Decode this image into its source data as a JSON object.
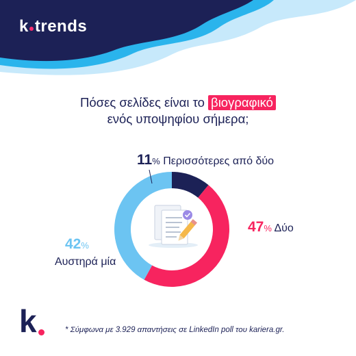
{
  "brand": {
    "name_prefix": "k",
    "name_suffix": "trends",
    "logo_letter": "k"
  },
  "title": {
    "line1_before": "Πόσες σελίδες είναι το",
    "highlight": "βιογραφικό",
    "line2": "ενός υποψηφίου σήμερα;"
  },
  "footnote": "* Σύμφωνα με 3.929 απαντήσεις σε LinkedIn poll του kariera.gr.",
  "colors": {
    "navy": "#1c2156",
    "pink": "#f7245f",
    "light_blue": "#6cc4f2",
    "wave_blue": "#2ab4ec"
  },
  "icon": "documents-pencil-icon",
  "chart_data": {
    "type": "pie",
    "donut": true,
    "series": [
      {
        "name": "Περισσότερες από δύο",
        "value": 11,
        "pct_label": "11",
        "color": "#1c2156"
      },
      {
        "name": "Δύο",
        "value": 47,
        "pct_label": "47",
        "color": "#f7245f"
      },
      {
        "name": "Αυστηρά μία",
        "value": 42,
        "pct_label": "42",
        "color": "#6cc4f2"
      }
    ],
    "unit": "%"
  }
}
